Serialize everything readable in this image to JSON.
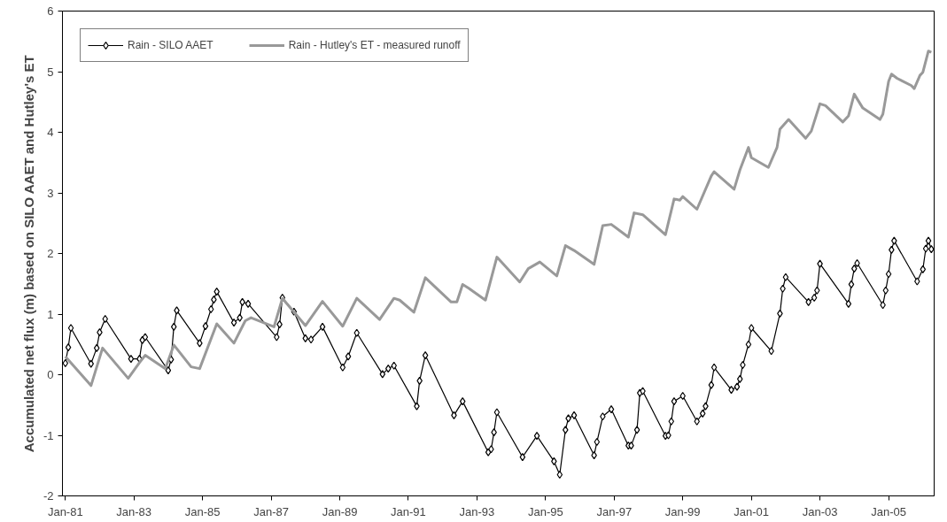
{
  "chart_data": {
    "type": "line",
    "ylabel": "Accumulated net flux (m) based on SILO AAET and Hutley's ET",
    "xlim": [
      "1980-12",
      "2006-05"
    ],
    "ylim": [
      -2,
      6
    ],
    "xticks": [
      {
        "value": "1981-01",
        "label": "Jan-81"
      },
      {
        "value": "1983-01",
        "label": "Jan-83"
      },
      {
        "value": "1985-01",
        "label": "Jan-85"
      },
      {
        "value": "1987-01",
        "label": "Jan-87"
      },
      {
        "value": "1989-01",
        "label": "Jan-89"
      },
      {
        "value": "1991-01",
        "label": "Jan-91"
      },
      {
        "value": "1993-01",
        "label": "Jan-93"
      },
      {
        "value": "1995-01",
        "label": "Jan-95"
      },
      {
        "value": "1997-01",
        "label": "Jan-97"
      },
      {
        "value": "1999-01",
        "label": "Jan-99"
      },
      {
        "value": "2001-01",
        "label": "Jan-01"
      },
      {
        "value": "2003-01",
        "label": "Jan-03"
      },
      {
        "value": "2005-01",
        "label": "Jan-05"
      }
    ],
    "yticks": [
      -2,
      -1,
      0,
      1,
      2,
      3,
      4,
      5,
      6
    ],
    "grid": false,
    "legend": "top left",
    "series": [
      {
        "name": "Rain - SILO AAET",
        "color": "#000000",
        "marker": "diamond",
        "line_style": "solid",
        "x": [
          "1981-01",
          "1981-02",
          "1981-03",
          "1981-10",
          "1981-12",
          "1982-01",
          "1982-03",
          "1982-12",
          "1983-03",
          "1983-04",
          "1983-05",
          "1984-01",
          "1984-02",
          "1984-03",
          "1984-04",
          "1984-12",
          "1985-02",
          "1985-04",
          "1985-05",
          "1985-06",
          "1985-12",
          "1986-02",
          "1986-03",
          "1986-05",
          "1987-03",
          "1987-04",
          "1987-05",
          "1987-09",
          "1988-01",
          "1988-03",
          "1988-07",
          "1989-02",
          "1989-04",
          "1989-07",
          "1990-04",
          "1990-06",
          "1990-08",
          "1991-04",
          "1991-05",
          "1991-07",
          "1992-05",
          "1992-08",
          "1993-05",
          "1993-06",
          "1993-07",
          "1993-08",
          "1994-05",
          "1994-10",
          "1995-04",
          "1995-06",
          "1995-08",
          "1995-09",
          "1995-11",
          "1996-06",
          "1996-07",
          "1996-09",
          "1996-12",
          "1997-06",
          "1997-07",
          "1997-09",
          "1997-10",
          "1997-11",
          "1998-07",
          "1998-08",
          "1998-09",
          "1998-10",
          "1999-01",
          "1999-06",
          "1999-08",
          "1999-09",
          "1999-11",
          "1999-12",
          "2000-06",
          "2000-08",
          "2000-09",
          "2000-10",
          "2000-12",
          "2001-01",
          "2001-08",
          "2001-11",
          "2001-12",
          "2002-01",
          "2002-09",
          "2002-11",
          "2002-12",
          "2003-01",
          "2003-11",
          "2003-12",
          "2004-01",
          "2004-02",
          "2004-11",
          "2004-12",
          "2005-01",
          "2005-02",
          "2005-03",
          "2005-11",
          "2006-01",
          "2006-02",
          "2006-03",
          "2006-04"
        ],
        "values": [
          0.19,
          0.45,
          0.77,
          0.18,
          0.44,
          0.7,
          0.92,
          0.26,
          0.26,
          0.57,
          0.62,
          0.07,
          0.25,
          0.79,
          1.06,
          0.52,
          0.8,
          1.08,
          1.24,
          1.37,
          0.86,
          0.94,
          1.2,
          1.17,
          0.62,
          0.83,
          1.27,
          1.04,
          0.6,
          0.58,
          0.79,
          0.12,
          0.3,
          0.69,
          0.01,
          0.1,
          0.15,
          -0.52,
          -0.1,
          0.32,
          -0.67,
          -0.44,
          -1.28,
          -1.23,
          -0.95,
          -0.62,
          -1.36,
          -1.01,
          -1.43,
          -1.65,
          -0.91,
          -0.72,
          -0.67,
          -1.33,
          -1.11,
          -0.69,
          -0.57,
          -1.17,
          -1.17,
          -0.91,
          -0.3,
          -0.27,
          -1.01,
          -1.0,
          -0.77,
          -0.44,
          -0.35,
          -0.77,
          -0.64,
          -0.52,
          -0.17,
          0.12,
          -0.25,
          -0.2,
          -0.07,
          0.16,
          0.5,
          0.77,
          0.39,
          1.01,
          1.42,
          1.61,
          1.2,
          1.27,
          1.39,
          1.83,
          1.17,
          1.49,
          1.75,
          1.84,
          1.15,
          1.39,
          1.66,
          2.06,
          2.21,
          1.54,
          1.74,
          2.08,
          2.21,
          2.07
        ]
      },
      {
        "name": "Rain - Hutley's ET - measured runoff",
        "color": "#999999",
        "marker": "none",
        "line_style": "solid",
        "x": [
          "1981-01",
          "1981-10",
          "1982-02",
          "1982-11",
          "1983-03",
          "1983-05",
          "1983-12",
          "1984-03",
          "1984-09",
          "1984-12",
          "1985-06",
          "1985-12",
          "1986-04",
          "1986-06",
          "1987-02",
          "1987-05",
          "1988-01",
          "1988-07",
          "1989-02",
          "1989-07",
          "1990-03",
          "1990-08",
          "1990-10",
          "1991-03",
          "1991-07",
          "1992-04",
          "1992-06",
          "1992-08",
          "1992-10",
          "1993-04",
          "1993-08",
          "1994-04",
          "1994-07",
          "1994-11",
          "1995-05",
          "1995-08",
          "1995-11",
          "1996-06",
          "1996-09",
          "1996-12",
          "1997-06",
          "1997-08",
          "1997-11",
          "1998-07",
          "1998-10",
          "1998-12",
          "1999-01",
          "1999-06",
          "1999-11",
          "1999-12",
          "2000-07",
          "2000-09",
          "2000-12",
          "2001-01",
          "2001-07",
          "2001-10",
          "2001-11",
          "2002-02",
          "2002-08",
          "2002-10",
          "2003-01",
          "2003-03",
          "2003-09",
          "2003-11",
          "2004-01",
          "2004-04",
          "2004-10",
          "2004-11",
          "2005-01",
          "2005-02",
          "2005-04",
          "2005-09",
          "2005-10",
          "2005-12",
          "2006-01",
          "2006-03",
          "2006-04"
        ],
        "values": [
          0.3,
          -0.18,
          0.44,
          -0.06,
          0.2,
          0.32,
          0.1,
          0.49,
          0.13,
          0.1,
          0.84,
          0.52,
          0.89,
          0.94,
          0.79,
          1.26,
          0.81,
          1.21,
          0.8,
          1.26,
          0.91,
          1.26,
          1.23,
          1.03,
          1.6,
          1.2,
          1.2,
          1.49,
          1.43,
          1.23,
          1.94,
          1.53,
          1.75,
          1.86,
          1.63,
          2.13,
          2.05,
          1.82,
          2.46,
          2.48,
          2.27,
          2.67,
          2.64,
          2.31,
          2.9,
          2.88,
          2.94,
          2.73,
          3.28,
          3.35,
          3.06,
          3.38,
          3.75,
          3.58,
          3.42,
          3.75,
          4.05,
          4.21,
          3.9,
          4.02,
          4.47,
          4.44,
          4.17,
          4.27,
          4.63,
          4.4,
          4.21,
          4.3,
          4.84,
          4.96,
          4.89,
          4.77,
          4.72,
          4.94,
          4.99,
          5.34,
          5.32
        ]
      }
    ]
  }
}
